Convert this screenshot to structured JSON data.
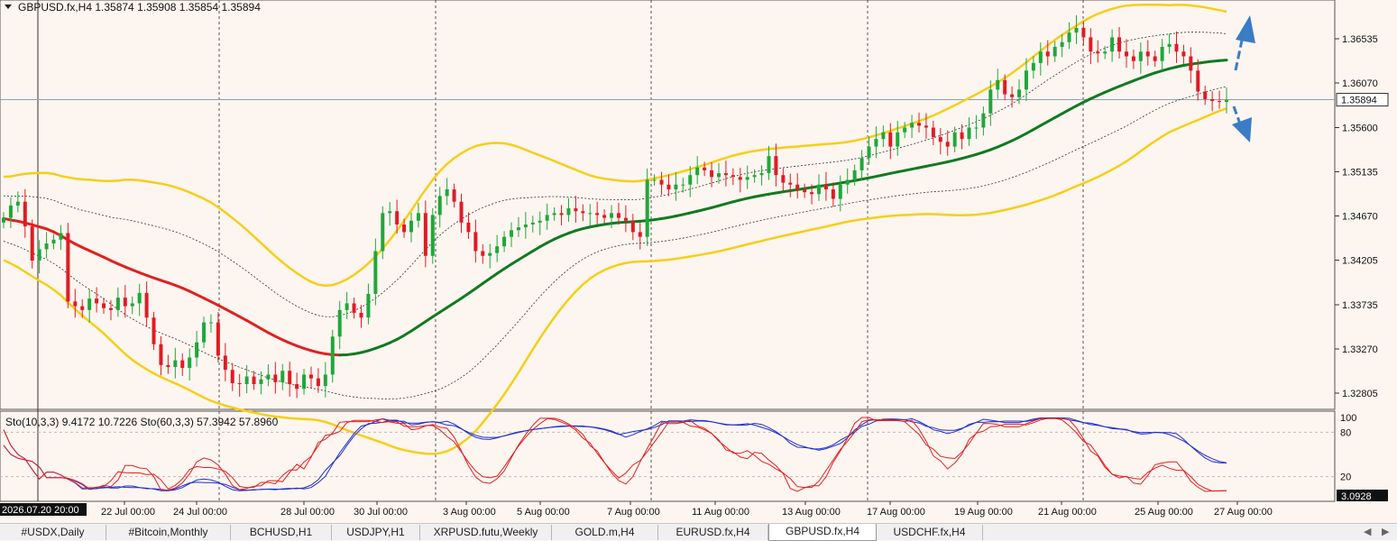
{
  "header": {
    "symbol_info": "GBPUSD.fx,H4  1.35874 1.35908 1.35854 1.35894",
    "dropdown_icon": "triangle-down-icon"
  },
  "indicator_label": "Sto(10,3,3) 9.4172 10.7226  Sto(60,3,3) 57.3942 57.8960",
  "price_axis": {
    "ticks": [
      "1.36535",
      "1.36070",
      "1.35600",
      "1.35135",
      "1.34670",
      "1.34205",
      "1.33735",
      "1.33270",
      "1.32805"
    ],
    "current_price": "1.35894"
  },
  "stoch_axis": {
    "ticks": [
      "100",
      "80",
      "20"
    ],
    "current_value": "3.0928"
  },
  "time_axis": {
    "start_label": "2026.07.20 20:00",
    "labels": [
      "22 Jul 00:00",
      "24 Jul 00:00",
      "28 Jul 00:00",
      "30 Jul 00:00",
      "3 Aug 00:00",
      "5 Aug 00:00",
      "7 Aug 00:00",
      "11 Aug 00:00",
      "13 Aug 00:00",
      "17 Aug 00:00",
      "19 Aug 00:00",
      "21 Aug 00:00",
      "25 Aug 00:00",
      "27 Aug 00:00"
    ]
  },
  "tabs": [
    {
      "label": "#USDX,Daily",
      "active": false
    },
    {
      "label": "#Bitcoin,Monthly",
      "active": false
    },
    {
      "label": "BCHUSD,H1",
      "active": false
    },
    {
      "label": "USDJPY,H1",
      "active": false
    },
    {
      "label": "XRPUSD.futu,Weekly",
      "active": false
    },
    {
      "label": "GOLD.m,H4",
      "active": false
    },
    {
      "label": "EURUSD.fx,H4",
      "active": false
    },
    {
      "label": "GBPUSD.fx,H4",
      "active": true
    },
    {
      "label": "USDCHF.fx,H4",
      "active": false
    }
  ],
  "colors": {
    "background": "#fdf5f0",
    "bull": "#1ea83a",
    "bear": "#e01b24",
    "band_outer": "#f5cf16",
    "band_inner": "#333333",
    "ma_up": "#117a20",
    "ma_down": "#e02020",
    "stoch_fast": "#e02020",
    "stoch_slow": "#1f2fd0",
    "arrow": "#3a7cc6"
  },
  "chart_data": {
    "type": "candlestick",
    "symbol": "GBPUSD.fx",
    "timeframe": "H4",
    "ohlc_last": {
      "open": 1.35874,
      "high": 1.35908,
      "low": 1.35854,
      "close": 1.35894
    },
    "y_range": [
      1.325,
      1.37
    ],
    "candles_close": [
      1.3465,
      1.3478,
      1.3482,
      1.3456,
      1.342,
      1.3432,
      1.3438,
      1.3442,
      1.3449,
      1.3377,
      1.3372,
      1.3368,
      1.338,
      1.3375,
      1.337,
      1.3368,
      1.3381,
      1.3372,
      1.3375,
      1.3386,
      1.336,
      1.3332,
      1.331,
      1.3308,
      1.3315,
      1.3307,
      1.3318,
      1.3334,
      1.3355,
      1.3355,
      1.332,
      1.3305,
      1.3291,
      1.329,
      1.3298,
      1.329,
      1.3295,
      1.33,
      1.3292,
      1.3304,
      1.329,
      1.3285,
      1.33,
      1.3296,
      1.3288,
      1.33,
      1.334,
      1.3368,
      1.3375,
      1.3365,
      1.336,
      1.3385,
      1.343,
      1.347,
      1.3472,
      1.3458,
      1.345,
      1.3462,
      1.347,
      1.3425,
      1.3468,
      1.3488,
      1.3495,
      1.3482,
      1.346,
      1.345,
      1.343,
      1.3425,
      1.3428,
      1.3435,
      1.3445,
      1.3452,
      1.3455,
      1.3458,
      1.346,
      1.3462,
      1.3468,
      1.347,
      1.3468,
      1.3475,
      1.3472,
      1.347,
      1.347,
      1.3468,
      1.3465,
      1.347,
      1.3465,
      1.3462,
      1.345,
      1.3445,
      1.3505,
      1.3505,
      1.35,
      1.3495,
      1.35,
      1.35,
      1.351,
      1.3518,
      1.3515,
      1.3508,
      1.3512,
      1.351,
      1.3508,
      1.3505,
      1.3508,
      1.351,
      1.3512,
      1.353,
      1.351,
      1.3502,
      1.35,
      1.3495,
      1.3492,
      1.349,
      1.35,
      1.3495,
      1.3485,
      1.35,
      1.3505,
      1.3515,
      1.3528,
      1.354,
      1.3548,
      1.3555,
      1.354,
      1.3555,
      1.356,
      1.3565,
      1.3562,
      1.356,
      1.355,
      1.3545,
      1.354,
      1.3555,
      1.3548,
      1.356,
      1.356,
      1.3575,
      1.36,
      1.361,
      1.3595,
      1.3592,
      1.36,
      1.362,
      1.3628,
      1.364,
      1.3635,
      1.3645,
      1.365,
      1.366,
      1.3665,
      1.3655,
      1.364,
      1.3638,
      1.364,
      1.3655,
      1.364,
      1.3635,
      1.363,
      1.364,
      1.3635,
      1.363,
      1.3645,
      1.3648,
      1.364,
      1.3635,
      1.362,
      1.3598,
      1.359,
      1.3588,
      1.3587,
      1.3589
    ],
    "stochastic": {
      "fast_label": "Sto(10,3,3)",
      "fast_main": 9.4172,
      "fast_signal": 10.7226,
      "slow_label": "Sto(60,3,3)",
      "slow_main": 57.3942,
      "slow_signal": 57.896,
      "levels": [
        20,
        80
      ],
      "y_range": [
        0,
        100
      ]
    },
    "annotations": [
      "arrow-up",
      "arrow-down"
    ]
  }
}
